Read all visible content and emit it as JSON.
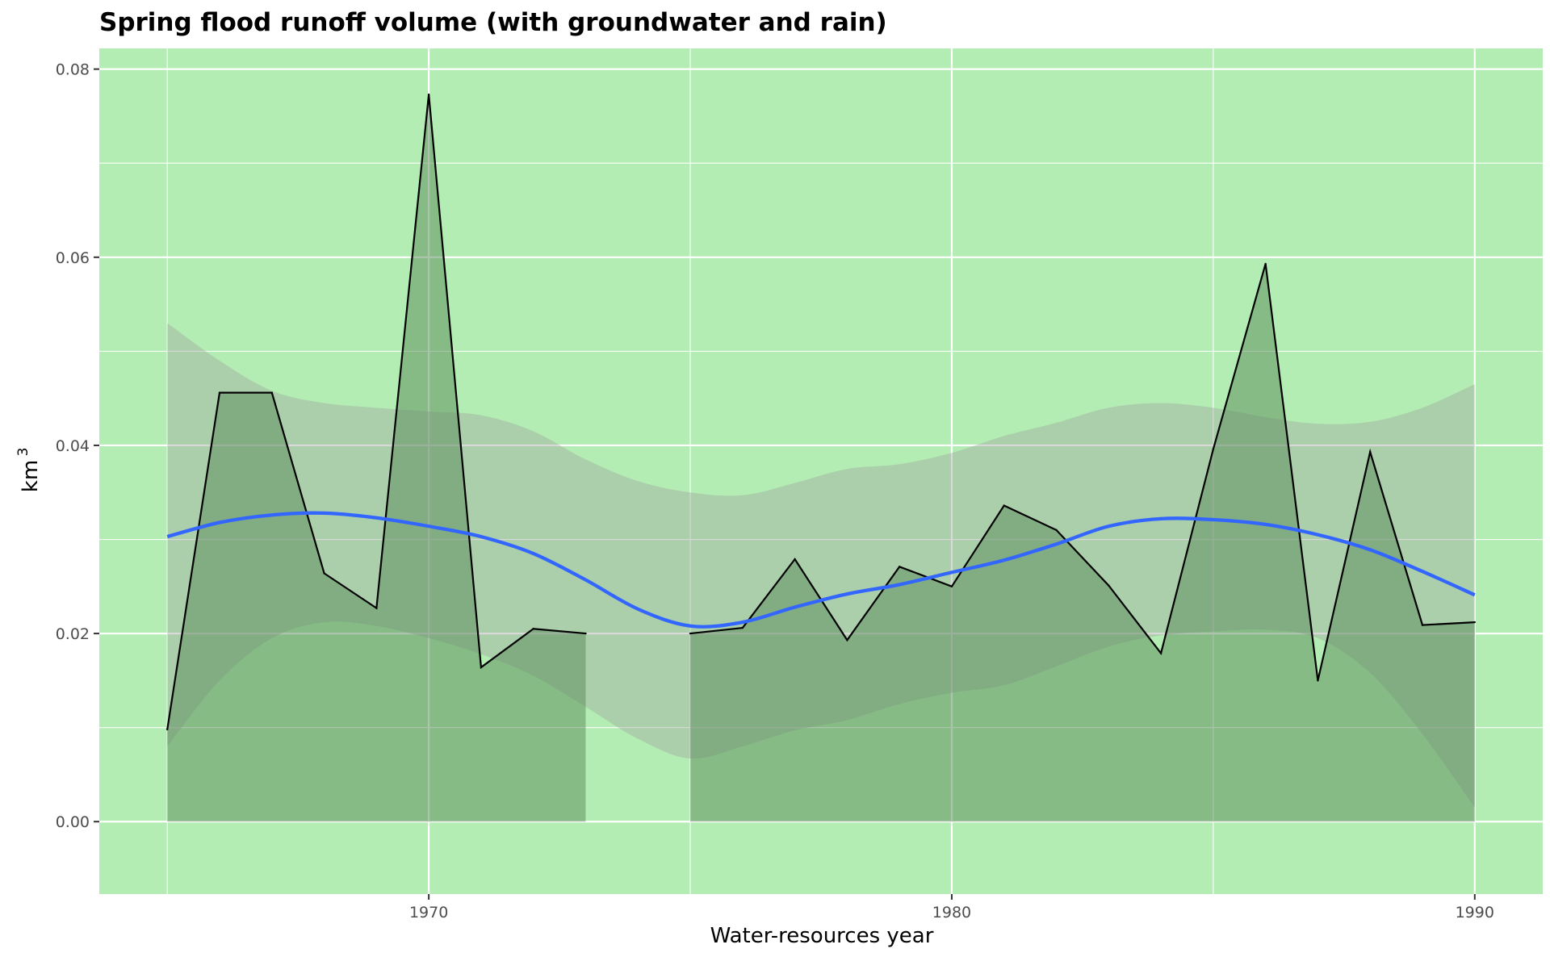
{
  "chart_data": {
    "type": "area",
    "title": "Spring flood runoff volume (with groundwater and rain)",
    "xlabel": "Water-resources year",
    "ylabel": "km",
    "ylabel_superscript": "3",
    "xlim": [
      1963.7,
      1991.3
    ],
    "ylim": [
      -0.0077,
      0.0822
    ],
    "x_ticks": [
      1970,
      1980,
      1990
    ],
    "x_tick_labels": [
      "1970",
      "1980",
      "1990"
    ],
    "y_ticks": [
      0.0,
      0.02,
      0.04,
      0.06,
      0.08
    ],
    "y_tick_labels": [
      "0.00",
      "0.02",
      "0.04",
      "0.06",
      "0.08"
    ],
    "grid": true,
    "colors": {
      "panel": "#b3edb3",
      "grid": "#ffffff",
      "area_fill": "#5a8a5a",
      "ribbon_fill": "#a0a0a0",
      "line": "#000000",
      "smooth": "#3366ff"
    },
    "series": [
      {
        "segment": 1,
        "x": [
          1965,
          1966,
          1967,
          1968,
          1969,
          1970,
          1971,
          1972,
          1973
        ],
        "y": [
          0.0098,
          0.0456,
          0.0456,
          0.0264,
          0.0227,
          0.0773,
          0.0164,
          0.0205,
          0.02
        ]
      },
      {
        "segment": 2,
        "x": [
          1975,
          1976,
          1977,
          1978,
          1979,
          1980,
          1981,
          1982,
          1983,
          1984,
          1985,
          1986,
          1987,
          1988,
          1989,
          1990
        ],
        "y": [
          0.02,
          0.0206,
          0.0279,
          0.0193,
          0.0271,
          0.025,
          0.0336,
          0.031,
          0.0251,
          0.0179,
          0.0396,
          0.0593,
          0.015,
          0.0393,
          0.0209,
          0.0212
        ]
      }
    ],
    "smooth": {
      "x": [
        1965,
        1966,
        1967,
        1968,
        1969,
        1970,
        1971,
        1972,
        1973,
        1974,
        1975,
        1976,
        1977,
        1978,
        1979,
        1980,
        1981,
        1982,
        1983,
        1984,
        1985,
        1986,
        1987,
        1988,
        1989,
        1990
      ],
      "y": [
        0.0303,
        0.0318,
        0.0326,
        0.0328,
        0.0323,
        0.0314,
        0.0303,
        0.0285,
        0.0257,
        0.0226,
        0.0208,
        0.0212,
        0.0228,
        0.0242,
        0.0252,
        0.0265,
        0.0278,
        0.0295,
        0.0314,
        0.0322,
        0.0321,
        0.0316,
        0.0305,
        0.0289,
        0.0266,
        0.0241
      ],
      "lower": [
        0.008,
        0.015,
        0.0195,
        0.0212,
        0.0208,
        0.0195,
        0.0178,
        0.0155,
        0.0122,
        0.0088,
        0.0067,
        0.008,
        0.0097,
        0.0108,
        0.0125,
        0.0137,
        0.0145,
        0.0165,
        0.0186,
        0.0198,
        0.0202,
        0.0204,
        0.0195,
        0.0158,
        0.0093,
        0.0015
      ],
      "upper": [
        0.053,
        0.049,
        0.0458,
        0.0445,
        0.044,
        0.0436,
        0.0432,
        0.0415,
        0.0385,
        0.0362,
        0.035,
        0.0347,
        0.036,
        0.0375,
        0.038,
        0.0392,
        0.041,
        0.0424,
        0.044,
        0.0445,
        0.044,
        0.043,
        0.0423,
        0.0425,
        0.044,
        0.0465
      ]
    }
  }
}
